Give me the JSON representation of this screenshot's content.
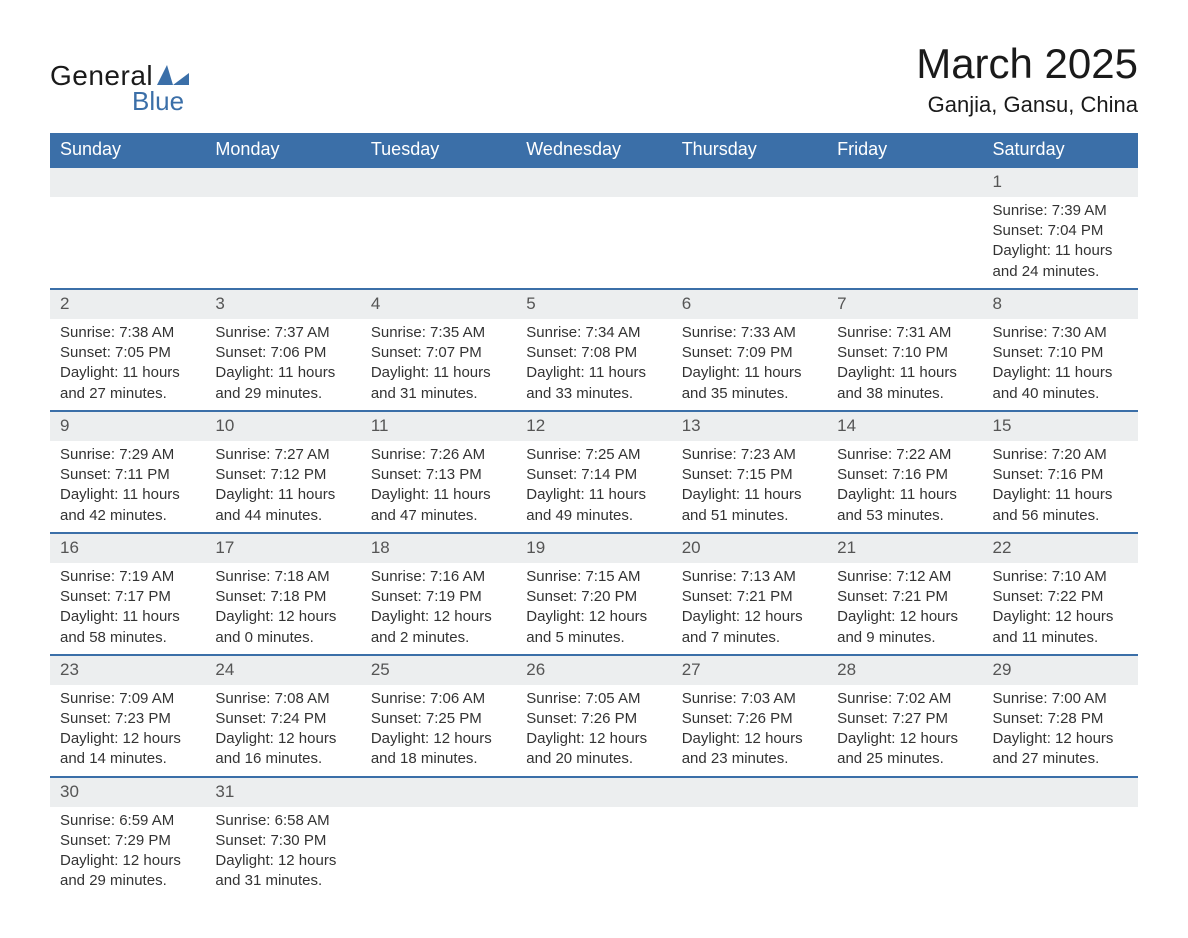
{
  "logo": {
    "text1": "General",
    "text2": "Blue",
    "shape_color": "#3b6fa8"
  },
  "title": "March 2025",
  "location": "Ganjia, Gansu, China",
  "colors": {
    "header_bg": "#3b6fa8",
    "header_text": "#ffffff",
    "daynum_bg": "#eceeef",
    "row_border": "#3b6fa8",
    "body_text": "#333333",
    "background": "#ffffff"
  },
  "typography": {
    "title_fontsize": 42,
    "location_fontsize": 22,
    "th_fontsize": 18,
    "cell_fontsize": 15,
    "daynum_fontsize": 17
  },
  "day_headers": [
    "Sunday",
    "Monday",
    "Tuesday",
    "Wednesday",
    "Thursday",
    "Friday",
    "Saturday"
  ],
  "weeks": [
    [
      null,
      null,
      null,
      null,
      null,
      null,
      {
        "day": "1",
        "sunrise": "Sunrise: 7:39 AM",
        "sunset": "Sunset: 7:04 PM",
        "daylight": "Daylight: 11 hours and 24 minutes."
      }
    ],
    [
      {
        "day": "2",
        "sunrise": "Sunrise: 7:38 AM",
        "sunset": "Sunset: 7:05 PM",
        "daylight": "Daylight: 11 hours and 27 minutes."
      },
      {
        "day": "3",
        "sunrise": "Sunrise: 7:37 AM",
        "sunset": "Sunset: 7:06 PM",
        "daylight": "Daylight: 11 hours and 29 minutes."
      },
      {
        "day": "4",
        "sunrise": "Sunrise: 7:35 AM",
        "sunset": "Sunset: 7:07 PM",
        "daylight": "Daylight: 11 hours and 31 minutes."
      },
      {
        "day": "5",
        "sunrise": "Sunrise: 7:34 AM",
        "sunset": "Sunset: 7:08 PM",
        "daylight": "Daylight: 11 hours and 33 minutes."
      },
      {
        "day": "6",
        "sunrise": "Sunrise: 7:33 AM",
        "sunset": "Sunset: 7:09 PM",
        "daylight": "Daylight: 11 hours and 35 minutes."
      },
      {
        "day": "7",
        "sunrise": "Sunrise: 7:31 AM",
        "sunset": "Sunset: 7:10 PM",
        "daylight": "Daylight: 11 hours and 38 minutes."
      },
      {
        "day": "8",
        "sunrise": "Sunrise: 7:30 AM",
        "sunset": "Sunset: 7:10 PM",
        "daylight": "Daylight: 11 hours and 40 minutes."
      }
    ],
    [
      {
        "day": "9",
        "sunrise": "Sunrise: 7:29 AM",
        "sunset": "Sunset: 7:11 PM",
        "daylight": "Daylight: 11 hours and 42 minutes."
      },
      {
        "day": "10",
        "sunrise": "Sunrise: 7:27 AM",
        "sunset": "Sunset: 7:12 PM",
        "daylight": "Daylight: 11 hours and 44 minutes."
      },
      {
        "day": "11",
        "sunrise": "Sunrise: 7:26 AM",
        "sunset": "Sunset: 7:13 PM",
        "daylight": "Daylight: 11 hours and 47 minutes."
      },
      {
        "day": "12",
        "sunrise": "Sunrise: 7:25 AM",
        "sunset": "Sunset: 7:14 PM",
        "daylight": "Daylight: 11 hours and 49 minutes."
      },
      {
        "day": "13",
        "sunrise": "Sunrise: 7:23 AM",
        "sunset": "Sunset: 7:15 PM",
        "daylight": "Daylight: 11 hours and 51 minutes."
      },
      {
        "day": "14",
        "sunrise": "Sunrise: 7:22 AM",
        "sunset": "Sunset: 7:16 PM",
        "daylight": "Daylight: 11 hours and 53 minutes."
      },
      {
        "day": "15",
        "sunrise": "Sunrise: 7:20 AM",
        "sunset": "Sunset: 7:16 PM",
        "daylight": "Daylight: 11 hours and 56 minutes."
      }
    ],
    [
      {
        "day": "16",
        "sunrise": "Sunrise: 7:19 AM",
        "sunset": "Sunset: 7:17 PM",
        "daylight": "Daylight: 11 hours and 58 minutes."
      },
      {
        "day": "17",
        "sunrise": "Sunrise: 7:18 AM",
        "sunset": "Sunset: 7:18 PM",
        "daylight": "Daylight: 12 hours and 0 minutes."
      },
      {
        "day": "18",
        "sunrise": "Sunrise: 7:16 AM",
        "sunset": "Sunset: 7:19 PM",
        "daylight": "Daylight: 12 hours and 2 minutes."
      },
      {
        "day": "19",
        "sunrise": "Sunrise: 7:15 AM",
        "sunset": "Sunset: 7:20 PM",
        "daylight": "Daylight: 12 hours and 5 minutes."
      },
      {
        "day": "20",
        "sunrise": "Sunrise: 7:13 AM",
        "sunset": "Sunset: 7:21 PM",
        "daylight": "Daylight: 12 hours and 7 minutes."
      },
      {
        "day": "21",
        "sunrise": "Sunrise: 7:12 AM",
        "sunset": "Sunset: 7:21 PM",
        "daylight": "Daylight: 12 hours and 9 minutes."
      },
      {
        "day": "22",
        "sunrise": "Sunrise: 7:10 AM",
        "sunset": "Sunset: 7:22 PM",
        "daylight": "Daylight: 12 hours and 11 minutes."
      }
    ],
    [
      {
        "day": "23",
        "sunrise": "Sunrise: 7:09 AM",
        "sunset": "Sunset: 7:23 PM",
        "daylight": "Daylight: 12 hours and 14 minutes."
      },
      {
        "day": "24",
        "sunrise": "Sunrise: 7:08 AM",
        "sunset": "Sunset: 7:24 PM",
        "daylight": "Daylight: 12 hours and 16 minutes."
      },
      {
        "day": "25",
        "sunrise": "Sunrise: 7:06 AM",
        "sunset": "Sunset: 7:25 PM",
        "daylight": "Daylight: 12 hours and 18 minutes."
      },
      {
        "day": "26",
        "sunrise": "Sunrise: 7:05 AM",
        "sunset": "Sunset: 7:26 PM",
        "daylight": "Daylight: 12 hours and 20 minutes."
      },
      {
        "day": "27",
        "sunrise": "Sunrise: 7:03 AM",
        "sunset": "Sunset: 7:26 PM",
        "daylight": "Daylight: 12 hours and 23 minutes."
      },
      {
        "day": "28",
        "sunrise": "Sunrise: 7:02 AM",
        "sunset": "Sunset: 7:27 PM",
        "daylight": "Daylight: 12 hours and 25 minutes."
      },
      {
        "day": "29",
        "sunrise": "Sunrise: 7:00 AM",
        "sunset": "Sunset: 7:28 PM",
        "daylight": "Daylight: 12 hours and 27 minutes."
      }
    ],
    [
      {
        "day": "30",
        "sunrise": "Sunrise: 6:59 AM",
        "sunset": "Sunset: 7:29 PM",
        "daylight": "Daylight: 12 hours and 29 minutes."
      },
      {
        "day": "31",
        "sunrise": "Sunrise: 6:58 AM",
        "sunset": "Sunset: 7:30 PM",
        "daylight": "Daylight: 12 hours and 31 minutes."
      },
      null,
      null,
      null,
      null,
      null
    ]
  ]
}
